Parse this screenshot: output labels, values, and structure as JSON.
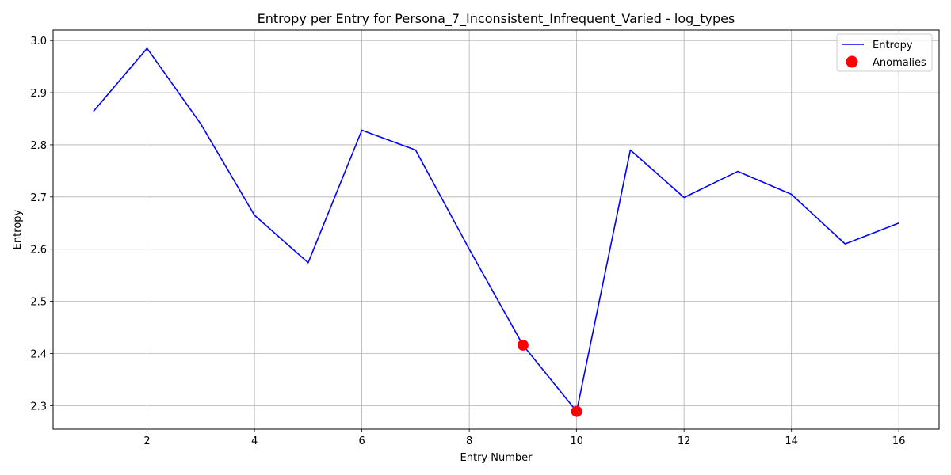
{
  "chart_data": {
    "type": "line",
    "title": "Entropy per Entry for Persona_7_Inconsistent_Infrequent_Varied - log_types",
    "xlabel": "Entry Number",
    "ylabel": "Entropy",
    "xlim": [
      0.25,
      16.75
    ],
    "ylim": [
      2.255,
      3.02
    ],
    "x_ticks": [
      2,
      4,
      6,
      8,
      10,
      12,
      14,
      16
    ],
    "y_ticks": [
      2.3,
      2.4,
      2.5,
      2.6,
      2.7,
      2.8,
      2.9,
      3.0
    ],
    "x_tick_labels": [
      "2",
      "4",
      "6",
      "8",
      "10",
      "12",
      "14",
      "16"
    ],
    "y_tick_labels": [
      "2.3",
      "2.4",
      "2.5",
      "2.6",
      "2.7",
      "2.8",
      "2.9",
      "3.0"
    ],
    "grid": true,
    "legend_position": "top-right",
    "series": [
      {
        "name": "Entropy",
        "kind": "line",
        "color": "#0000ff",
        "x": [
          1,
          2,
          3,
          4,
          5,
          6,
          7,
          8,
          9,
          10,
          11,
          12,
          13,
          14,
          15,
          16
        ],
        "y": [
          2.864,
          2.985,
          2.84,
          2.665,
          2.574,
          2.828,
          2.79,
          2.6,
          2.416,
          2.289,
          2.79,
          2.699,
          2.749,
          2.705,
          2.61,
          2.65
        ]
      },
      {
        "name": "Anomalies",
        "kind": "scatter",
        "color": "#ff0000",
        "x": [
          9,
          10
        ],
        "y": [
          2.416,
          2.289
        ]
      }
    ]
  }
}
